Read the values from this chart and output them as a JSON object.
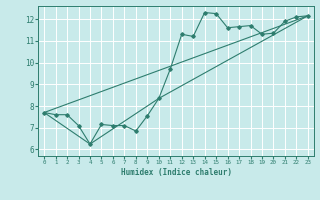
{
  "title": "",
  "xlabel": "Humidex (Indice chaleur)",
  "bg_color": "#c8eaea",
  "grid_color": "#ffffff",
  "line_color": "#2e7d6e",
  "xlim": [
    -0.5,
    23.5
  ],
  "ylim": [
    5.7,
    12.6
  ],
  "xticks": [
    0,
    1,
    2,
    3,
    4,
    5,
    6,
    7,
    8,
    9,
    10,
    11,
    12,
    13,
    14,
    15,
    16,
    17,
    18,
    19,
    20,
    21,
    22,
    23
  ],
  "yticks": [
    6,
    7,
    8,
    9,
    10,
    11,
    12
  ],
  "series0_x": [
    0,
    1,
    2,
    3,
    4,
    5,
    6,
    7,
    8,
    9,
    10,
    11,
    12,
    13,
    14,
    15,
    16,
    17,
    18,
    19,
    20,
    21,
    22,
    23
  ],
  "series0_y": [
    7.7,
    7.6,
    7.6,
    7.1,
    6.25,
    7.15,
    7.1,
    7.1,
    6.85,
    7.55,
    8.35,
    9.7,
    11.3,
    11.2,
    12.3,
    12.25,
    11.6,
    11.65,
    11.7,
    11.3,
    11.35,
    11.9,
    12.1,
    12.15
  ],
  "series1_x": [
    0,
    23
  ],
  "series1_y": [
    7.7,
    12.15
  ],
  "series2_x": [
    0,
    4,
    10,
    23
  ],
  "series2_y": [
    7.7,
    6.25,
    8.35,
    12.15
  ]
}
